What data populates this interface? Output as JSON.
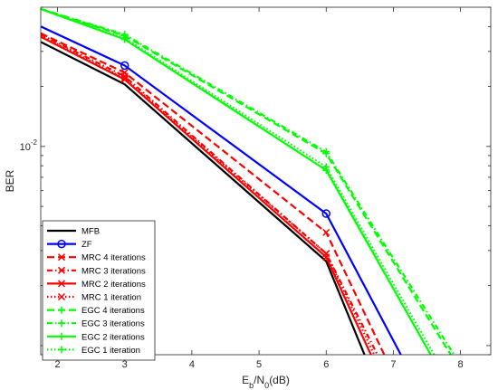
{
  "chart_data": {
    "type": "line",
    "title": "",
    "xlabel": "E_b/N_0(dB)",
    "xlabel_parts": {
      "main": "E",
      "sub1": "b",
      "mid": "/N",
      "sub2": "0",
      "tail": "(dB)"
    },
    "ylabel": "BER",
    "xlim": [
      1.75,
      8.45
    ],
    "ylim": [
      0.0009,
      0.05
    ],
    "yscale": "log",
    "xticks": [
      2,
      3,
      4,
      5,
      6,
      7,
      8
    ],
    "yticks": [
      {
        "value": 0.01,
        "label_base": "10",
        "label_exp": "-2"
      }
    ],
    "grid": false,
    "legend_position": "lower-left",
    "series": [
      {
        "name": "MFB",
        "color": "#000000",
        "dash": "",
        "marker": "none",
        "x": [
          1.75,
          3,
          6,
          6.6
        ],
        "y": [
          0.0335,
          0.0205,
          0.00265,
          0.00085
        ]
      },
      {
        "name": "ZF",
        "color": "#0000ff",
        "dash": "",
        "marker": "circle",
        "x": [
          1.75,
          3,
          6,
          7.15
        ],
        "y": [
          0.04,
          0.0255,
          0.0046,
          0.00085
        ]
      },
      {
        "name": "MRC 4 iterations",
        "color": "#ff0000",
        "dash": "8,4",
        "marker": "x",
        "x": [
          1.75,
          3,
          6,
          6.9
        ],
        "y": [
          0.037,
          0.0235,
          0.0037,
          0.00085
        ]
      },
      {
        "name": "MRC 3 iterations",
        "color": "#ff0000",
        "dash": "6,3,1.5,3",
        "marker": "x",
        "x": [
          1.75,
          3,
          6,
          6.8
        ],
        "y": [
          0.0365,
          0.0225,
          0.0029,
          0.00085
        ]
      },
      {
        "name": "MRC 2 iterations",
        "color": "#ff0000",
        "dash": "",
        "marker": "x",
        "x": [
          1.75,
          3,
          6,
          6.7
        ],
        "y": [
          0.0355,
          0.0217,
          0.00278,
          0.00085
        ]
      },
      {
        "name": "MRC 1 iteration",
        "color": "#ff0000",
        "dash": "1.5,2.5",
        "marker": "x",
        "x": [
          1.75,
          3,
          6,
          6.75
        ],
        "y": [
          0.036,
          0.022,
          0.0029,
          0.00085
        ]
      },
      {
        "name": "EGC 4 iterations",
        "color": "#00ff00",
        "dash": "8,4",
        "marker": "plus",
        "x": [
          1.75,
          3,
          6,
          7.9
        ],
        "y": [
          0.049,
          0.036,
          0.0092,
          0.00085
        ]
      },
      {
        "name": "EGC 3 iterations",
        "color": "#00ff00",
        "dash": "6,3,1.5,3",
        "marker": "plus",
        "x": [
          1.75,
          3,
          6,
          7.95
        ],
        "y": [
          0.049,
          0.0365,
          0.0094,
          0.00085
        ]
      },
      {
        "name": "EGC 2 iterations",
        "color": "#00ff00",
        "dash": "",
        "marker": "plus",
        "x": [
          1.75,
          3,
          6,
          7.6
        ],
        "y": [
          0.049,
          0.0345,
          0.0076,
          0.00085
        ]
      },
      {
        "name": "EGC 1 iteration",
        "color": "#00ff00",
        "dash": "1.5,2.5",
        "marker": "plus",
        "x": [
          1.75,
          3,
          6,
          7.65
        ],
        "y": [
          0.049,
          0.035,
          0.0079,
          0.00085
        ]
      }
    ]
  }
}
